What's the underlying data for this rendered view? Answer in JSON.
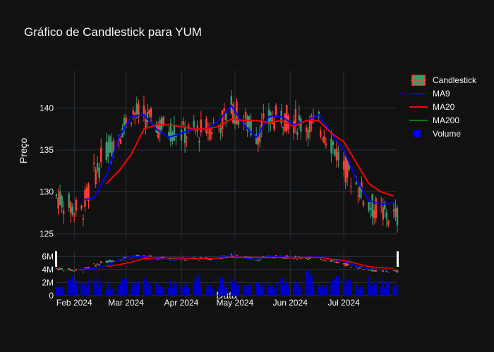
{
  "chart_data": {
    "type": "candlestick",
    "title": "Gráfico de Candlestick para YUM",
    "xlabel": "Data",
    "ylabel": "Preço",
    "x_tick_labels": [
      "Feb 2024",
      "Mar 2024",
      "Apr 2024",
      "May 2024",
      "Jun 2024",
      "Jul 2024"
    ],
    "y_ticks": [
      125,
      130,
      135,
      140
    ],
    "ylim": [
      124.5,
      144.5
    ],
    "volume_ticks": [
      "0",
      "2M",
      "4M",
      "6M"
    ],
    "volume_ylim": [
      0,
      7000000
    ],
    "date_range": [
      "2024-01-22",
      "2024-07-31"
    ],
    "legend": [
      {
        "name": "Candlestick",
        "color": "#3D9970"
      },
      {
        "name": "MA9",
        "color": "#0000FF"
      },
      {
        "name": "MA20",
        "color": "#FF0000"
      },
      {
        "name": "MA200",
        "color": "#008000"
      },
      {
        "name": "Volume",
        "color": "#0000FF"
      }
    ],
    "colors": {
      "up": "#3D9970",
      "down": "#FF4136",
      "background": "#111111",
      "grid": "#283442"
    },
    "grid": true,
    "legend_position": "top-right",
    "series": [
      {
        "name": "Close",
        "x": [
          "2024-01-22",
          "2024-01-29",
          "2024-02-05",
          "2024-02-12",
          "2024-02-19",
          "2024-02-26",
          "2024-03-04",
          "2024-03-11",
          "2024-03-18",
          "2024-03-25",
          "2024-04-01",
          "2024-04-08",
          "2024-04-15",
          "2024-04-22",
          "2024-04-29",
          "2024-05-06",
          "2024-05-13",
          "2024-05-20",
          "2024-05-27",
          "2024-06-03",
          "2024-06-10",
          "2024-06-17",
          "2024-06-24",
          "2024-07-01",
          "2024-07-08",
          "2024-07-15",
          "2024-07-22",
          "2024-07-29"
        ],
        "values": [
          129.5,
          128.3,
          127.5,
          132.0,
          135.0,
          137.0,
          139.5,
          139.0,
          138.0,
          137.5,
          137.0,
          137.0,
          137.5,
          138.0,
          140.0,
          138.5,
          137.0,
          138.5,
          139.0,
          138.5,
          138.0,
          138.0,
          136.0,
          133.0,
          131.0,
          128.5,
          127.5,
          127.0
        ]
      },
      {
        "name": "MA9",
        "x": [
          "2024-02-05",
          "2024-02-12",
          "2024-02-19",
          "2024-02-26",
          "2024-03-04",
          "2024-03-11",
          "2024-03-18",
          "2024-03-25",
          "2024-04-01",
          "2024-04-08",
          "2024-04-15",
          "2024-04-22",
          "2024-04-29",
          "2024-05-06",
          "2024-05-13",
          "2024-05-20",
          "2024-05-27",
          "2024-06-03",
          "2024-06-10",
          "2024-06-17",
          "2024-06-24",
          "2024-07-01",
          "2024-07-08",
          "2024-07-15",
          "2024-07-22",
          "2024-07-29"
        ],
        "values": [
          129.0,
          129.3,
          132.0,
          136.5,
          139.0,
          139.2,
          137.5,
          136.5,
          137.0,
          137.5,
          137.5,
          138.5,
          140.3,
          138.0,
          136.5,
          139.0,
          139.0,
          138.0,
          138.5,
          139.2,
          137.0,
          135.0,
          131.5,
          129.0,
          128.5,
          128.7
        ]
      },
      {
        "name": "MA20",
        "x": [
          "2024-02-19",
          "2024-02-26",
          "2024-03-04",
          "2024-03-11",
          "2024-03-18",
          "2024-03-25",
          "2024-04-01",
          "2024-04-08",
          "2024-04-15",
          "2024-04-22",
          "2024-04-29",
          "2024-05-06",
          "2024-05-13",
          "2024-05-20",
          "2024-05-27",
          "2024-06-03",
          "2024-06-10",
          "2024-06-17",
          "2024-06-24",
          "2024-07-01",
          "2024-07-08",
          "2024-07-15",
          "2024-07-22",
          "2024-07-29"
        ],
        "values": [
          131.0,
          132.5,
          134.5,
          137.5,
          138.0,
          138.0,
          137.8,
          137.5,
          137.5,
          137.8,
          138.7,
          138.5,
          138.5,
          138.3,
          138.5,
          137.8,
          138.5,
          138.5,
          137.0,
          136.0,
          133.5,
          131.0,
          130.0,
          129.5
        ]
      },
      {
        "name": "Volume",
        "values": [
          1.4,
          2.5,
          1.9,
          2.3,
          1.5,
          2.1,
          1.6,
          2.2,
          1.4,
          1.9,
          1.7,
          2.6,
          1.5,
          2.0,
          2.4,
          1.6,
          2.3,
          1.5,
          2.1,
          1.7,
          2.8,
          1.6,
          2.3,
          1.9,
          1.5,
          2.2,
          2.0,
          1.6
        ],
        "unit": "M"
      }
    ]
  }
}
